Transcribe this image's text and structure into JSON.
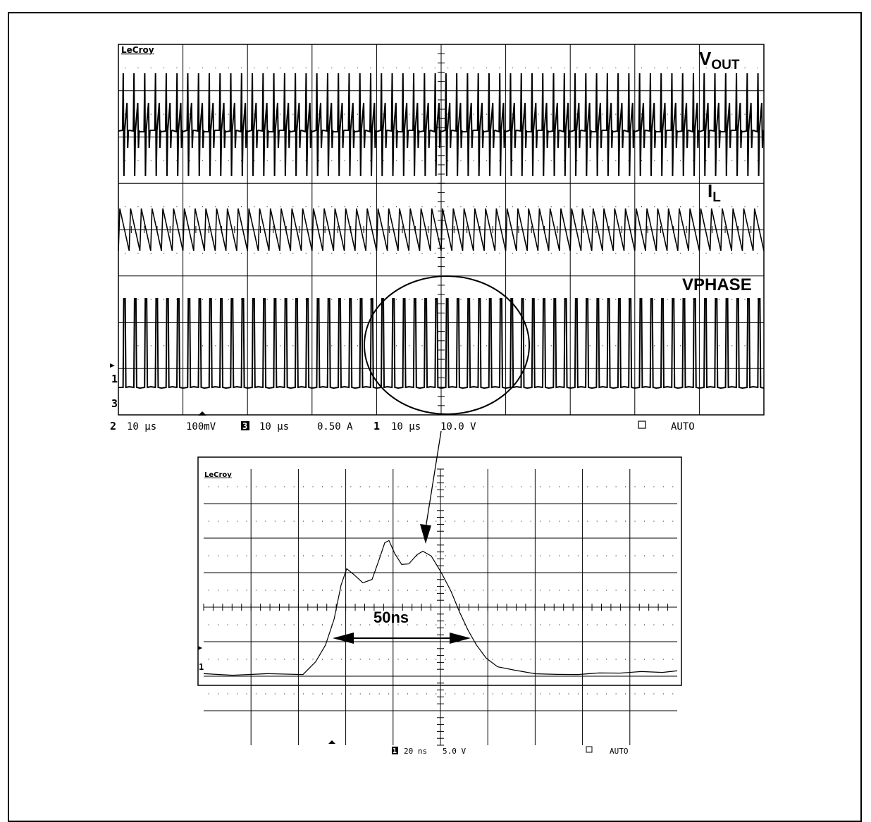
{
  "chart_data": [
    {
      "type": "line",
      "brand": "LeCroy",
      "grid": true,
      "divisions": {
        "x": 10,
        "y": 8
      },
      "series": [
        {
          "name": "VOUT",
          "name_main": "V",
          "name_sub": "OUT",
          "shape": "ripple-spikes",
          "pulses": 60
        },
        {
          "name": "IL",
          "name_main": "I",
          "name_sub": "L",
          "shape": "sawtooth",
          "cycles": 60
        },
        {
          "name": "VPHASE",
          "shape": "pulse-train",
          "pulses": 60
        }
      ],
      "channel_markers": [
        "1",
        "3",
        "2"
      ],
      "status_bar": {
        "ch2": {
          "num": "2",
          "timebase": "10 µs",
          "scale": "100mV"
        },
        "ch3": {
          "num": "3",
          "timebase": "10 µs",
          "scale": "0.50 A"
        },
        "ch1": {
          "num": "1",
          "timebase": "10 µs",
          "scale": "10.0 V"
        },
        "trigger": "AUTO"
      },
      "annotations": [
        "zoom-ellipse-on-VPHASE"
      ]
    },
    {
      "type": "line",
      "brand": "LeCroy",
      "grid": true,
      "divisions": {
        "x": 10,
        "y": 8
      },
      "series": [
        {
          "name": "VPHASE (zoomed)",
          "shape": "single-pulse"
        }
      ],
      "channel_markers": [
        "1"
      ],
      "annotations": [
        {
          "text": "50ns",
          "kind": "width-arrow"
        }
      ],
      "status_bar": {
        "ch1": {
          "num": "1",
          "timebase": "20 ns",
          "scale": "5.0 V"
        },
        "trigger": "AUTO"
      }
    }
  ],
  "colors": {
    "trace": "#000000",
    "grid": "#000000",
    "background": "#ffffff"
  }
}
